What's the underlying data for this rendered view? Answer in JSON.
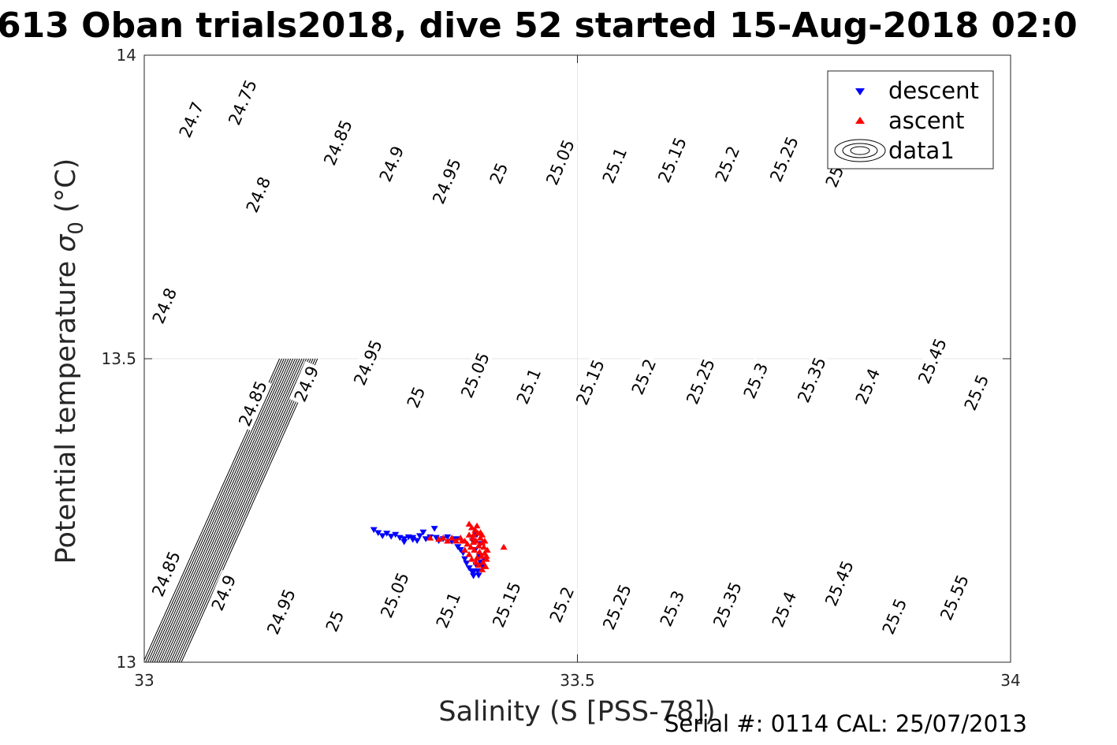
{
  "chart_data": {
    "type": "scatter",
    "title": "613 Oban trials2018, dive 52 started 15-Aug-2018 02:0",
    "xlabel": "Salinity (S [PSS-78])",
    "ylabel_text": "Potential temperature ",
    "ylabel_sigma": "σ",
    "ylabel_sub": "0",
    "ylabel_unit": " (°C)",
    "xlim": [
      33,
      34
    ],
    "ylim": [
      13,
      14
    ],
    "x_ticks": [
      33,
      33.5,
      34
    ],
    "x_tick_labels": [
      "33",
      "33.5",
      "34"
    ],
    "y_ticks": [
      13,
      13.5,
      14
    ],
    "y_tick_labels": [
      "13",
      "13.5",
      "14"
    ],
    "grid": true,
    "legend_position": "top-right",
    "legend": [
      "descent",
      "ascent",
      "data1"
    ],
    "series": [
      {
        "name": "descent",
        "color": "#0000ff",
        "marker": "triangle-down",
        "points": [
          [
            33.265,
            13.218
          ],
          [
            33.27,
            13.213
          ],
          [
            33.275,
            13.208
          ],
          [
            33.28,
            13.212
          ],
          [
            33.285,
            13.207
          ],
          [
            33.29,
            13.21
          ],
          [
            33.295,
            13.205
          ],
          [
            33.3,
            13.203
          ],
          [
            33.305,
            13.206
          ],
          [
            33.31,
            13.202
          ],
          [
            33.315,
            13.2
          ],
          [
            33.3,
            13.198
          ],
          [
            33.31,
            13.205
          ],
          [
            33.318,
            13.208
          ],
          [
            33.322,
            13.214
          ],
          [
            33.325,
            13.203
          ],
          [
            33.33,
            13.206
          ],
          [
            33.335,
            13.22
          ],
          [
            33.337,
            13.205
          ],
          [
            33.34,
            13.2
          ],
          [
            33.345,
            13.203
          ],
          [
            33.35,
            13.206
          ],
          [
            33.355,
            13.199
          ],
          [
            33.36,
            13.203
          ],
          [
            33.362,
            13.19
          ],
          [
            33.365,
            13.185
          ],
          [
            33.368,
            13.18
          ],
          [
            33.37,
            13.17
          ],
          [
            33.372,
            13.163
          ],
          [
            33.375,
            13.155
          ],
          [
            33.378,
            13.15
          ],
          [
            33.38,
            13.148
          ],
          [
            33.385,
            13.15
          ],
          [
            33.383,
            13.16
          ],
          [
            33.388,
            13.165
          ],
          [
            33.387,
            13.175
          ],
          [
            33.382,
            13.185
          ],
          [
            33.388,
            13.195
          ],
          [
            33.379,
            13.2
          ],
          [
            33.384,
            13.21
          ],
          [
            33.386,
            13.143
          ],
          [
            33.38,
            13.142
          ],
          [
            33.392,
            13.17
          ],
          [
            33.39,
            13.158
          ]
        ]
      },
      {
        "name": "ascent",
        "color": "#ff0000",
        "marker": "triangle-up",
        "points": [
          [
            33.375,
            13.228
          ],
          [
            33.378,
            13.222
          ],
          [
            33.382,
            13.218
          ],
          [
            33.38,
            13.21
          ],
          [
            33.385,
            13.213
          ],
          [
            33.388,
            13.205
          ],
          [
            33.383,
            13.2
          ],
          [
            33.39,
            13.197
          ],
          [
            33.386,
            13.192
          ],
          [
            33.392,
            13.19
          ],
          [
            33.381,
            13.185
          ],
          [
            33.387,
            13.182
          ],
          [
            33.393,
            13.18
          ],
          [
            33.389,
            13.175
          ],
          [
            33.384,
            13.172
          ],
          [
            33.395,
            13.17
          ],
          [
            33.391,
            13.165
          ],
          [
            33.386,
            13.16
          ],
          [
            33.394,
            13.158
          ],
          [
            33.39,
            13.153
          ],
          [
            33.37,
            13.2
          ],
          [
            33.365,
            13.205
          ],
          [
            33.36,
            13.2
          ],
          [
            33.355,
            13.205
          ],
          [
            33.35,
            13.2
          ],
          [
            33.345,
            13.205
          ],
          [
            33.34,
            13.203
          ],
          [
            33.33,
            13.205
          ],
          [
            33.377,
            13.19
          ],
          [
            33.373,
            13.195
          ],
          [
            33.388,
            13.214
          ],
          [
            33.393,
            13.2
          ],
          [
            33.379,
            13.205
          ],
          [
            33.396,
            13.185
          ],
          [
            33.383,
            13.165
          ],
          [
            33.375,
            13.21
          ],
          [
            33.38,
            13.198
          ],
          [
            33.395,
            13.175
          ],
          [
            33.37,
            13.185
          ],
          [
            33.375,
            13.178
          ],
          [
            33.378,
            13.17
          ],
          [
            33.415,
            13.19
          ],
          [
            33.39,
            13.21
          ],
          [
            33.384,
            13.225
          ],
          [
            33.367,
            13.2
          ]
        ]
      }
    ],
    "contours": [
      {
        "value": 24.7,
        "lines": [
          [
            [
              0,
              195
            ],
            [
              104,
              1
            ]
          ]
        ],
        "labels": [
          {
            "x": 60,
            "y": 82
          }
        ]
      },
      {
        "value": 24.75,
        "lines": [
          [
            [
              0,
              100
            ],
            [
              190,
              1
            ]
          ]
        ],
        "labels": [
          {
            "x": 125,
            "y": 60
          }
        ]
      },
      {
        "value": 24.8,
        "lines": [
          [
            [
              0,
              413
            ],
            [
              34,
              297
            ],
            [
              51,
              234
            ],
            [
              211,
              -4
            ]
          ]
        ],
        "labels": [
          {
            "x": 145,
            "y": 177
          },
          {
            "x": 26,
            "y": 318
          }
        ]
      },
      {
        "value": 24.85,
        "lines": [
          [
            [
              0,
              -1
            ],
            [
              225,
              317
            ],
            [
              317,
              0
            ]
          ]
        ],
        "labels": [
          {
            "x": 28,
            "y": 658
          },
          {
            "x": 138,
            "y": 442
          },
          {
            "x": 246,
            "y": 111
          }
        ]
      },
      {
        "value": 24.9,
        "lines": [
          [
            [
              0,
              -1
            ],
            [
              383,
              0
            ]
          ]
        ],
        "labels": [
          {
            "x": 101,
            "y": 682
          },
          {
            "x": 206,
            "y": 417
          },
          {
            "x": 314,
            "y": 138
          }
        ]
      },
      {
        "value": 24.95,
        "lines": [
          [
            [
              0,
              -1
            ],
            [
              450,
              1
            ]
          ]
        ],
        "labels": [
          {
            "x": 174,
            "y": 706
          },
          {
            "x": 284,
            "y": 390
          },
          {
            "x": 384,
            "y": 160
          }
        ]
      },
      {
        "value": 25.0,
        "lines": [
          [
            [
              0,
              -1
            ],
            [
              520,
              1
            ]
          ]
        ],
        "labels": [
          {
            "x": 242,
            "y": 718
          },
          {
            "x": 345,
            "y": 434
          },
          {
            "x": 450,
            "y": 150
          }
        ]
      },
      {
        "value": 25.05,
        "lines": [
          [
            [
              0,
              -1
            ],
            [
              590,
              1
            ]
          ]
        ],
        "labels": [
          {
            "x": 318,
            "y": 685
          },
          {
            "x": 420,
            "y": 406
          },
          {
            "x": 528,
            "y": 136
          }
        ]
      },
      {
        "value": 25.1,
        "lines": [
          [
            [
              0,
              -1
            ],
            [
              660,
              1
            ]
          ]
        ],
        "labels": [
          {
            "x": 386,
            "y": 704
          },
          {
            "x": 488,
            "y": 420
          },
          {
            "x": 597,
            "y": 140
          }
        ]
      },
      {
        "value": 25.15,
        "lines": [
          [
            [
              0,
              -1
            ],
            [
              730,
              1
            ]
          ]
        ],
        "labels": [
          {
            "x": 460,
            "y": 697
          },
          {
            "x": 566,
            "y": 415
          },
          {
            "x": 670,
            "y": 133
          }
        ]
      },
      {
        "value": 25.2,
        "lines": [
          [
            [
              0,
              -1
            ],
            [
              800,
              1
            ]
          ]
        ],
        "labels": [
          {
            "x": 530,
            "y": 697
          },
          {
            "x": 634,
            "y": 408
          },
          {
            "x": 740,
            "y": 138
          }
        ]
      },
      {
        "value": 25.25,
        "lines": [
          [
            [
              0,
              -1
            ],
            [
              870,
              1
            ]
          ]
        ],
        "labels": [
          {
            "x": 600,
            "y": 700
          },
          {
            "x": 706,
            "y": 414
          },
          {
            "x": 812,
            "y": 132
          }
        ]
      },
      {
        "value": 25.3,
        "lines": [
          [
            [
              0,
              -1
            ],
            [
              940,
              1
            ]
          ]
        ],
        "labels": [
          {
            "x": 670,
            "y": 702
          },
          {
            "x": 776,
            "y": 413
          },
          {
            "x": 880,
            "y": 145
          }
        ]
      },
      {
        "value": 25.35,
        "lines": [
          [
            [
              0,
              -1
            ],
            [
              1010,
              1
            ]
          ]
        ],
        "labels": [
          {
            "x": 740,
            "y": 697
          },
          {
            "x": 847,
            "y": 412
          }
        ]
      },
      {
        "value": 25.4,
        "lines": [
          [
            [
              0,
              -1
            ],
            [
              1080,
              1
            ]
          ]
        ],
        "labels": [
          {
            "x": 812,
            "y": 703
          },
          {
            "x": 918,
            "y": 420
          }
        ]
      },
      {
        "value": 25.45,
        "lines": [
          [
            [
              0,
              -1
            ],
            [
              1100,
              -1
            ]
          ]
        ],
        "labels": [
          {
            "x": 882,
            "y": 670
          },
          {
            "x": 1000,
            "y": 388
          }
        ]
      },
      {
        "value": 25.5,
        "lines": [
          [
            [
              0,
              -1
            ],
            [
              1100,
              -1
            ]
          ]
        ],
        "labels": [
          {
            "x": 952,
            "y": 712
          },
          {
            "x": 1056,
            "y": 428
          }
        ]
      },
      {
        "value": 25.55,
        "lines": [
          [
            [
              0,
              -1
            ],
            [
              1100,
              -1
            ]
          ]
        ],
        "labels": [
          {
            "x": 1028,
            "y": 688
          }
        ]
      }
    ]
  },
  "footer": {
    "serial_label": "Serial #: 0114  CAL: 25/07/2013"
  }
}
